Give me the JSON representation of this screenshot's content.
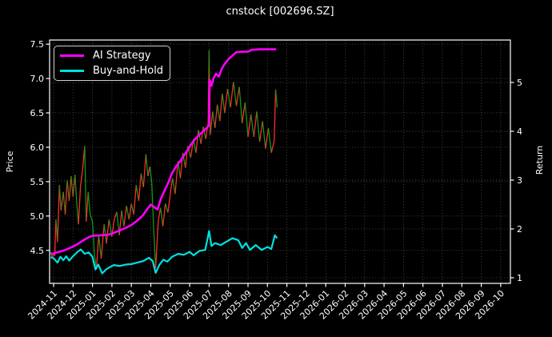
{
  "title": "cnstock [002696.SZ]",
  "legend": {
    "position": "upper left",
    "items": [
      {
        "label": "AI Strategy",
        "color": "#ff00ff"
      },
      {
        "label": "Buy-and-Hold",
        "color": "#00e0e0"
      }
    ]
  },
  "axes": {
    "left": {
      "label": "Price",
      "tick_labels": [
        "7.5",
        "7.0",
        "6.5",
        "6.0",
        "5.5",
        "5.0",
        "4.5"
      ],
      "tick_values": [
        7.5,
        7.0,
        6.5,
        6.0,
        5.5,
        5.0,
        4.5
      ]
    },
    "right": {
      "label": "Return",
      "tick_labels": [
        "5",
        "4",
        "3",
        "2",
        "1"
      ],
      "tick_values": [
        5,
        4,
        3,
        2,
        1
      ]
    },
    "x": {
      "tick_labels": [
        "2024-11",
        "2024-12",
        "2025-01",
        "2025-02",
        "2025-03",
        "2025-04",
        "2025-05",
        "2025-06",
        "2025-07",
        "2025-08",
        "2025-09",
        "2025-10",
        "2025-11",
        "2025-12",
        "2026-01",
        "2026-02",
        "2026-03",
        "2026-04",
        "2026-05",
        "2026-06",
        "2026-07",
        "2026-08",
        "2026-09",
        "2026-10"
      ]
    }
  },
  "style": {
    "background": "#000000",
    "frame_color": "#ffffff",
    "grid_color": "#565656",
    "text_color": "#ffffff",
    "price_up_color": "#ff2d2d",
    "price_down_color": "#0f9b0f"
  },
  "chart_data": {
    "type": "line",
    "title": "cnstock [002696.SZ]",
    "xlabel": "",
    "x_unit": "months since 2024-11 (0 = 2024-11)",
    "ylabel_left": "Price",
    "ylabel_right": "Return",
    "y_left_range": [
      4.02,
      7.56
    ],
    "y_right_range": [
      0.885,
      5.87
    ],
    "grid": true,
    "legend_position": "upper left",
    "series": [
      {
        "name": "Price",
        "axis": "left",
        "style": "direction-colored (up=red, down=green)",
        "points": [
          [
            -0.15,
            4.48
          ],
          [
            -0.08,
            4.4
          ],
          [
            0.0,
            4.45
          ],
          [
            0.06,
            4.42
          ],
          [
            0.12,
            4.95
          ],
          [
            0.2,
            4.62
          ],
          [
            0.3,
            5.45
          ],
          [
            0.38,
            5.08
          ],
          [
            0.5,
            5.35
          ],
          [
            0.6,
            5.02
          ],
          [
            0.7,
            5.52
          ],
          [
            0.8,
            5.22
          ],
          [
            0.9,
            5.58
          ],
          [
            1.0,
            5.28
          ],
          [
            1.1,
            5.6
          ],
          [
            1.2,
            5.15
          ],
          [
            1.28,
            4.88
          ],
          [
            1.38,
            5.42
          ],
          [
            1.5,
            5.7
          ],
          [
            1.6,
            6.02
          ],
          [
            1.68,
            4.92
          ],
          [
            1.78,
            5.35
          ],
          [
            1.88,
            5.02
          ],
          [
            2.0,
            4.92
          ],
          [
            2.1,
            4.45
          ],
          [
            2.2,
            4.22
          ],
          [
            2.32,
            4.72
          ],
          [
            2.45,
            4.38
          ],
          [
            2.6,
            4.88
          ],
          [
            2.72,
            4.6
          ],
          [
            2.85,
            4.95
          ],
          [
            3.0,
            4.7
          ],
          [
            3.12,
            4.95
          ],
          [
            3.25,
            5.06
          ],
          [
            3.38,
            4.72
          ],
          [
            3.5,
            5.08
          ],
          [
            3.62,
            4.85
          ],
          [
            3.75,
            5.15
          ],
          [
            3.88,
            4.95
          ],
          [
            4.0,
            5.18
          ],
          [
            4.12,
            5.02
          ],
          [
            4.25,
            5.45
          ],
          [
            4.38,
            5.22
          ],
          [
            4.5,
            5.62
          ],
          [
            4.62,
            5.42
          ],
          [
            4.75,
            5.9
          ],
          [
            4.85,
            5.58
          ],
          [
            4.95,
            5.72
          ],
          [
            5.05,
            5.48
          ],
          [
            5.15,
            4.8
          ],
          [
            5.25,
            4.24
          ],
          [
            5.38,
            4.92
          ],
          [
            5.5,
            5.12
          ],
          [
            5.62,
            4.85
          ],
          [
            5.75,
            5.18
          ],
          [
            5.88,
            5.05
          ],
          [
            6.0,
            5.32
          ],
          [
            6.12,
            5.55
          ],
          [
            6.25,
            5.32
          ],
          [
            6.4,
            5.8
          ],
          [
            6.52,
            5.55
          ],
          [
            6.65,
            5.92
          ],
          [
            6.78,
            5.7
          ],
          [
            6.9,
            6.02
          ],
          [
            7.05,
            5.85
          ],
          [
            7.2,
            6.12
          ],
          [
            7.32,
            5.92
          ],
          [
            7.45,
            6.25
          ],
          [
            7.58,
            6.05
          ],
          [
            7.7,
            6.3
          ],
          [
            7.82,
            6.12
          ],
          [
            7.95,
            6.35
          ],
          [
            8.0,
            7.41
          ],
          [
            8.06,
            6.18
          ],
          [
            8.18,
            6.52
          ],
          [
            8.3,
            6.28
          ],
          [
            8.42,
            6.62
          ],
          [
            8.55,
            6.38
          ],
          [
            8.68,
            6.78
          ],
          [
            8.8,
            6.5
          ],
          [
            8.95,
            6.85
          ],
          [
            9.1,
            6.58
          ],
          [
            9.25,
            6.95
          ],
          [
            9.4,
            6.6
          ],
          [
            9.55,
            6.88
          ],
          [
            9.7,
            6.35
          ],
          [
            9.85,
            6.65
          ],
          [
            10.0,
            6.15
          ],
          [
            10.15,
            6.48
          ],
          [
            10.3,
            6.15
          ],
          [
            10.45,
            6.52
          ],
          [
            10.6,
            6.08
          ],
          [
            10.75,
            6.38
          ],
          [
            10.9,
            5.98
          ],
          [
            11.05,
            6.28
          ],
          [
            11.2,
            5.92
          ],
          [
            11.35,
            6.1
          ],
          [
            11.42,
            6.84
          ],
          [
            11.5,
            6.58
          ]
        ]
      },
      {
        "name": "AI Strategy",
        "axis": "right",
        "color": "#ff00ff",
        "points": [
          [
            -0.15,
            1.49
          ],
          [
            0.0,
            1.5
          ],
          [
            0.3,
            1.53
          ],
          [
            0.6,
            1.57
          ],
          [
            0.9,
            1.62
          ],
          [
            1.2,
            1.68
          ],
          [
            1.5,
            1.76
          ],
          [
            1.8,
            1.83
          ],
          [
            2.0,
            1.86
          ],
          [
            2.4,
            1.87
          ],
          [
            2.8,
            1.88
          ],
          [
            3.1,
            1.92
          ],
          [
            3.4,
            1.97
          ],
          [
            3.7,
            2.02
          ],
          [
            4.0,
            2.08
          ],
          [
            4.3,
            2.17
          ],
          [
            4.6,
            2.28
          ],
          [
            4.8,
            2.4
          ],
          [
            5.0,
            2.5
          ],
          [
            5.2,
            2.44
          ],
          [
            5.35,
            2.4
          ],
          [
            5.5,
            2.6
          ],
          [
            5.7,
            2.78
          ],
          [
            5.9,
            2.95
          ],
          [
            6.1,
            3.15
          ],
          [
            6.3,
            3.28
          ],
          [
            6.5,
            3.38
          ],
          [
            6.7,
            3.5
          ],
          [
            6.9,
            3.62
          ],
          [
            7.1,
            3.75
          ],
          [
            7.3,
            3.85
          ],
          [
            7.5,
            3.93
          ],
          [
            7.7,
            4.0
          ],
          [
            7.9,
            4.08
          ],
          [
            8.0,
            4.13
          ],
          [
            8.03,
            5.05
          ],
          [
            8.12,
            4.93
          ],
          [
            8.22,
            5.08
          ],
          [
            8.35,
            5.18
          ],
          [
            8.5,
            5.12
          ],
          [
            8.65,
            5.28
          ],
          [
            8.8,
            5.38
          ],
          [
            9.0,
            5.48
          ],
          [
            9.2,
            5.55
          ],
          [
            9.4,
            5.62
          ],
          [
            9.7,
            5.63
          ],
          [
            10.0,
            5.63
          ],
          [
            10.2,
            5.67
          ],
          [
            10.6,
            5.68
          ],
          [
            11.0,
            5.68
          ],
          [
            11.45,
            5.68
          ]
        ]
      },
      {
        "name": "Buy-and-Hold",
        "axis": "right",
        "color": "#00e0e0",
        "points": [
          [
            -0.15,
            1.42
          ],
          [
            0.0,
            1.4
          ],
          [
            0.2,
            1.31
          ],
          [
            0.35,
            1.43
          ],
          [
            0.5,
            1.36
          ],
          [
            0.65,
            1.44
          ],
          [
            0.8,
            1.35
          ],
          [
            1.0,
            1.44
          ],
          [
            1.2,
            1.52
          ],
          [
            1.4,
            1.58
          ],
          [
            1.6,
            1.49
          ],
          [
            1.8,
            1.52
          ],
          [
            2.0,
            1.43
          ],
          [
            2.15,
            1.17
          ],
          [
            2.3,
            1.27
          ],
          [
            2.5,
            1.09
          ],
          [
            2.7,
            1.17
          ],
          [
            2.9,
            1.22
          ],
          [
            3.1,
            1.26
          ],
          [
            3.4,
            1.24
          ],
          [
            3.7,
            1.27
          ],
          [
            4.0,
            1.28
          ],
          [
            4.3,
            1.31
          ],
          [
            4.6,
            1.34
          ],
          [
            4.9,
            1.41
          ],
          [
            5.1,
            1.34
          ],
          [
            5.25,
            1.1
          ],
          [
            5.45,
            1.27
          ],
          [
            5.65,
            1.37
          ],
          [
            5.85,
            1.33
          ],
          [
            6.1,
            1.43
          ],
          [
            6.4,
            1.49
          ],
          [
            6.7,
            1.47
          ],
          [
            7.0,
            1.53
          ],
          [
            7.2,
            1.46
          ],
          [
            7.5,
            1.55
          ],
          [
            7.8,
            1.57
          ],
          [
            8.0,
            1.96
          ],
          [
            8.12,
            1.65
          ],
          [
            8.3,
            1.71
          ],
          [
            8.6,
            1.67
          ],
          [
            8.9,
            1.74
          ],
          [
            9.2,
            1.81
          ],
          [
            9.5,
            1.77
          ],
          [
            9.7,
            1.61
          ],
          [
            9.9,
            1.71
          ],
          [
            10.1,
            1.57
          ],
          [
            10.4,
            1.67
          ],
          [
            10.7,
            1.57
          ],
          [
            11.0,
            1.63
          ],
          [
            11.2,
            1.59
          ],
          [
            11.38,
            1.87
          ],
          [
            11.5,
            1.81
          ]
        ]
      }
    ]
  }
}
